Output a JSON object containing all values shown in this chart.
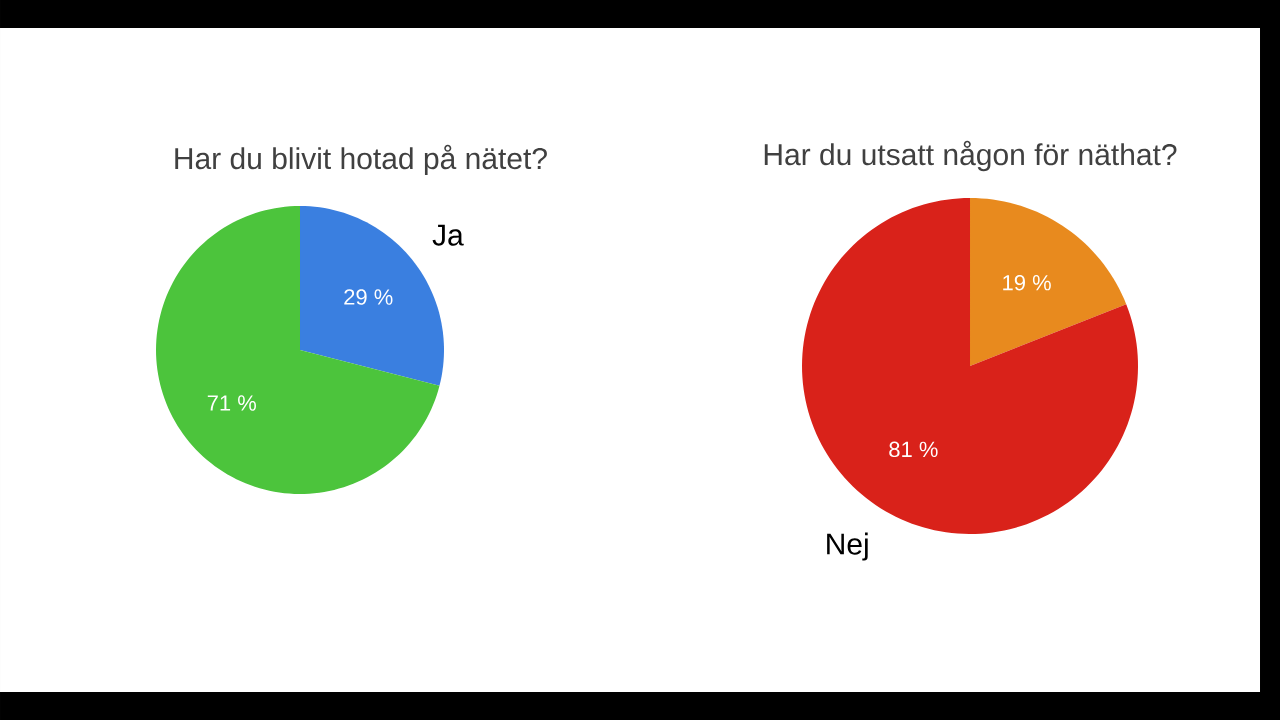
{
  "chart_data": [
    {
      "type": "pie",
      "title": "Har du blivit hotad på nätet?",
      "categories": [
        "Ja",
        null
      ],
      "values": [
        29,
        71
      ],
      "colors": [
        "#3a7fe0",
        "#4cc43c"
      ],
      "value_labels": [
        "29 %",
        "71 %"
      ]
    },
    {
      "type": "pie",
      "title": "Har du utsatt någon för näthat?",
      "categories": [
        null,
        "Nej"
      ],
      "values": [
        19,
        81
      ],
      "colors": [
        "#e88a1e",
        "#d9221a"
      ],
      "value_labels": [
        "19 %",
        "81 %"
      ]
    }
  ]
}
